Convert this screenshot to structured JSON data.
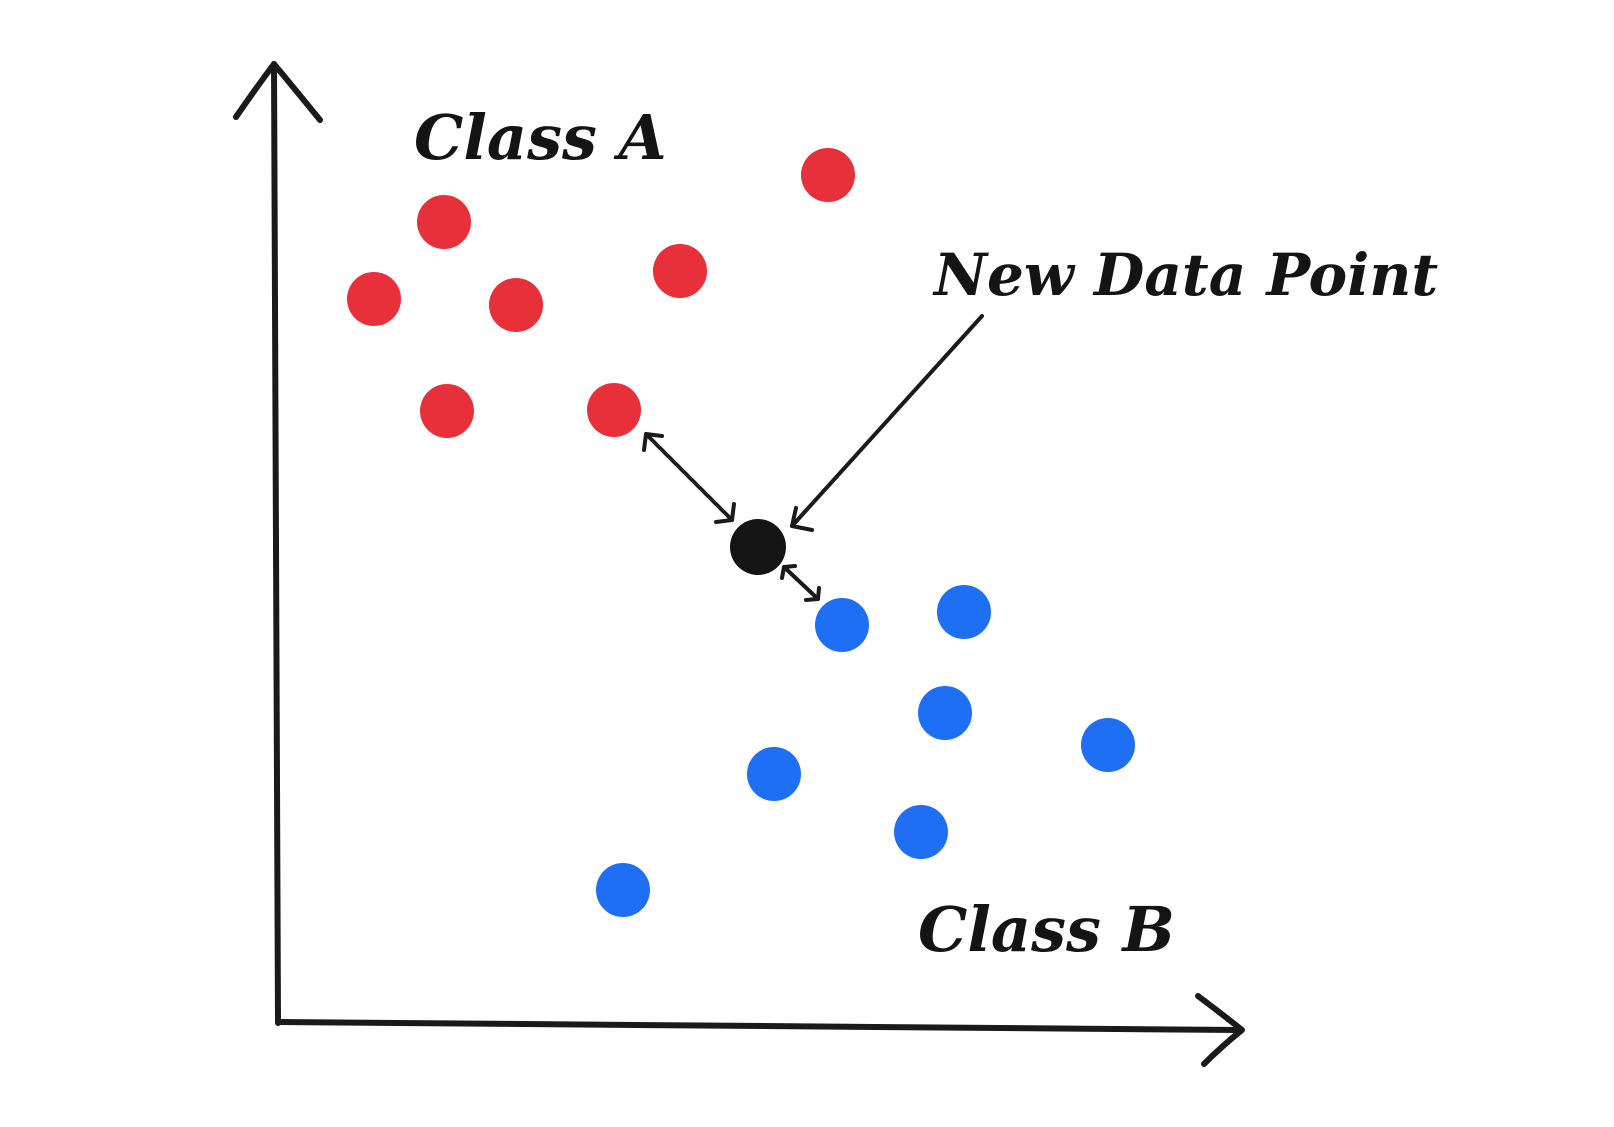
{
  "labels": {
    "class_a": "Class A",
    "class_b": "Class B",
    "new_point": "New Data Point"
  },
  "colors": {
    "class_a": "#e8303a",
    "class_b": "#1f6ff5",
    "new_point": "#141414",
    "ink": "#1a1a1a"
  },
  "icons": {
    "y_axis_arrow": "arrow-up-icon",
    "x_axis_arrow": "arrow-right-icon"
  }
}
